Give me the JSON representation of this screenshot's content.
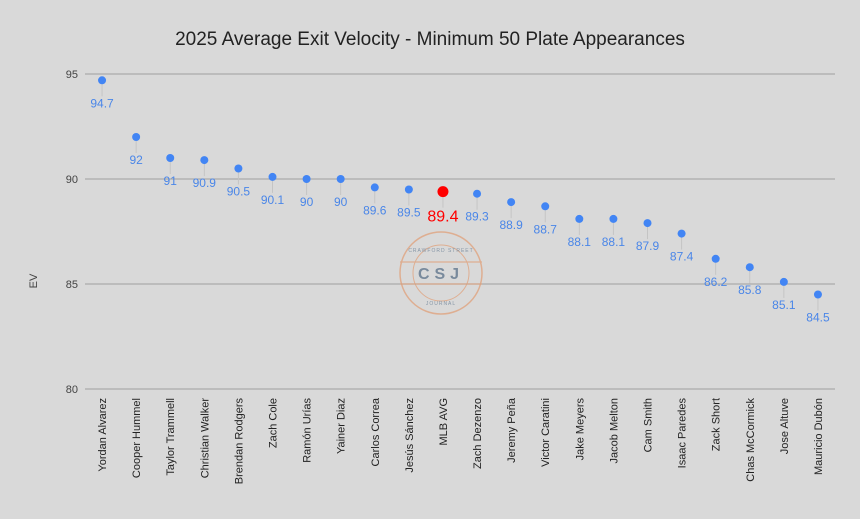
{
  "chart_data": {
    "type": "scatter",
    "title": "2025 Average Exit Velocity - Minimum 50 Plate Appearances",
    "xlabel": "",
    "ylabel": "EV",
    "ylim": [
      80,
      95
    ],
    "yticks": [
      80,
      85,
      90,
      95
    ],
    "grid": true,
    "categories": [
      "Yordan Alvarez",
      "Cooper Hummel",
      "Taylor Trammell",
      "Christian Walker",
      "Brendan Rodgers",
      "Zach Cole",
      "Ramón Urías",
      "Yainer Diaz",
      "Carlos Correa",
      "Jesús Sánchez",
      "MLB AVG",
      "Zach Dezenzo",
      "Jeremy Peña",
      "Victor Caratini",
      "Jake Meyers",
      "Jacob Melton",
      "Cam Smith",
      "Isaac Paredes",
      "Zack Short",
      "Chas McCormick",
      "Jose Altuve",
      "Mauricio Dubón"
    ],
    "values": [
      94.7,
      92,
      91,
      90.9,
      90.5,
      90.1,
      90,
      90,
      89.6,
      89.5,
      89.4,
      89.3,
      88.9,
      88.7,
      88.1,
      88.1,
      87.9,
      87.4,
      86.2,
      85.8,
      85.1,
      84.5
    ],
    "highlight_category": "MLB AVG",
    "colors": {
      "point": "#4285f4",
      "label": "#4a86e8",
      "highlight": "#ff0000",
      "grid": "#9e9e9e"
    }
  },
  "watermark": {
    "top": "CRAWFORD STREET",
    "center": "CSJ",
    "bottom": "JOURNAL"
  }
}
